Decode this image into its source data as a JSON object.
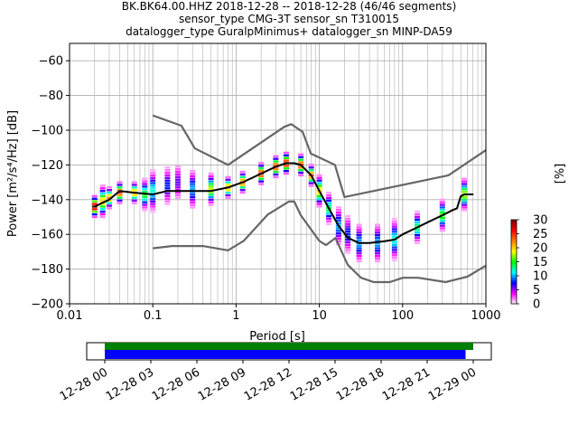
{
  "chart_data": [
    {
      "type": "heatmap",
      "title_lines": [
        "BK.BK64.00.HHZ   2018-12-28 -- 2018-12-28  (46/46 segments)",
        "sensor_type CMG-3T sensor_sn T310015",
        "datalogger_type GuralpMinimus+ datalogger_sn MINP-DA59"
      ],
      "xlabel": "Period [s]",
      "ylabel": "Power [m²/s⁴/Hz] [dB]",
      "xscale": "log",
      "xlim": [
        0.01,
        1000
      ],
      "ylim": [
        -200,
        -50
      ],
      "x_ticks": [
        0.01,
        0.1,
        1,
        10,
        100,
        1000
      ],
      "x_tick_labels": [
        "0.01",
        "0.1",
        "1",
        "10",
        "100",
        "1000"
      ],
      "y_ticks": [
        -200,
        -180,
        -160,
        -140,
        -120,
        -100,
        -80,
        -60
      ],
      "y_tick_labels": [
        "−200",
        "−180",
        "−160",
        "−140",
        "−120",
        "−100",
        "−80",
        "−60"
      ],
      "grid": true,
      "colorbar": {
        "label": "[%]",
        "range": [
          0,
          30
        ],
        "ticks": [
          0,
          5,
          10,
          15,
          20,
          25,
          30
        ],
        "tick_labels": [
          "0",
          "5",
          "10",
          "15",
          "20",
          "25",
          "30"
        ],
        "colormap_stops": [
          "#ffffff",
          "#ff00ff",
          "#0000ff",
          "#00ffff",
          "#00ff00",
          "#ffff00",
          "#ff7f00",
          "#ff0000",
          "#800000"
        ]
      },
      "series": [
        {
          "role": "noise-model-high",
          "color": "#666666",
          "x": [
            0.1,
            0.22,
            0.32,
            0.8,
            3.8,
            4.6,
            6.3,
            7.9,
            15.4,
            20,
            354.8,
            1000
          ],
          "y": [
            -91.5,
            -97.4,
            -110.5,
            -120,
            -98,
            -96.5,
            -101,
            -113.5,
            -120,
            -138.5,
            -126,
            -111.5
          ]
        },
        {
          "role": "noise-model-low",
          "color": "#666666",
          "x": [
            0.1,
            0.17,
            0.4,
            0.8,
            1.24,
            2.4,
            4.3,
            5,
            6,
            10,
            12,
            15.6,
            21.9,
            31.6,
            45,
            70,
            101,
            154,
            328,
            600,
            1000
          ],
          "y": [
            -168,
            -166.7,
            -166.7,
            -169.2,
            -163.7,
            -148.6,
            -141.1,
            -141.1,
            -149,
            -163.8,
            -166.2,
            -162.1,
            -177.5,
            -185,
            -187.5,
            -187.5,
            -185,
            -185,
            -187.5,
            -184.4,
            -178
          ]
        },
        {
          "role": "median-psd",
          "color": "#000000",
          "x": [
            0.02,
            0.03,
            0.04,
            0.06,
            0.1,
            0.15,
            0.2,
            0.3,
            0.5,
            0.8,
            1.2,
            2,
            3,
            4,
            5,
            6,
            8,
            10,
            13,
            17,
            22,
            30,
            40,
            60,
            80,
            100,
            150,
            200,
            300,
            400,
            450,
            500,
            550,
            600,
            700
          ],
          "y": [
            -144,
            -140,
            -135,
            -136,
            -137,
            -135,
            -135,
            -135,
            -135,
            -133,
            -130,
            -125,
            -121,
            -119,
            -119,
            -120,
            -126,
            -135,
            -145,
            -155,
            -162,
            -165,
            -165,
            -164,
            -163,
            -160,
            -156,
            -153,
            -149,
            -146,
            -145,
            -138,
            -137,
            -137,
            -137
          ]
        }
      ],
      "psd_distribution": {
        "description_values": "percent occurrence per period bin",
        "points": [
          {
            "x": 0.02,
            "y": -144,
            "pct": 30
          },
          {
            "x": 0.025,
            "y": -141,
            "pct": 20
          },
          {
            "x": 0.03,
            "y": -139,
            "pct": 22
          },
          {
            "x": 0.04,
            "y": -136,
            "pct": 25
          },
          {
            "x": 0.06,
            "y": -136,
            "pct": 22
          },
          {
            "x": 0.08,
            "y": -137,
            "pct": 15
          },
          {
            "x": 0.1,
            "y": -135,
            "pct": 12
          },
          {
            "x": 0.15,
            "y": -132,
            "pct": 8
          },
          {
            "x": 0.2,
            "y": -130,
            "pct": 6
          },
          {
            "x": 0.3,
            "y": -134,
            "pct": 10
          },
          {
            "x": 0.5,
            "y": -134,
            "pct": 18
          },
          {
            "x": 0.8,
            "y": -133,
            "pct": 22
          },
          {
            "x": 1.2,
            "y": -130,
            "pct": 24
          },
          {
            "x": 2,
            "y": -125,
            "pct": 26
          },
          {
            "x": 3,
            "y": -121,
            "pct": 26
          },
          {
            "x": 4,
            "y": -119,
            "pct": 28
          },
          {
            "x": 6,
            "y": -120,
            "pct": 26
          },
          {
            "x": 8,
            "y": -126,
            "pct": 24
          },
          {
            "x": 10,
            "y": -135,
            "pct": 20
          },
          {
            "x": 13,
            "y": -145,
            "pct": 14
          },
          {
            "x": 17,
            "y": -155,
            "pct": 10
          },
          {
            "x": 22,
            "y": -160,
            "pct": 8
          },
          {
            "x": 30,
            "y": -165,
            "pct": 10
          },
          {
            "x": 50,
            "y": -165,
            "pct": 10
          },
          {
            "x": 80,
            "y": -163,
            "pct": 12
          },
          {
            "x": 150,
            "y": -156,
            "pct": 14
          },
          {
            "x": 300,
            "y": -149,
            "pct": 16
          },
          {
            "x": 550,
            "y": -137,
            "pct": 18
          }
        ]
      }
    },
    {
      "type": "timeline",
      "x_tick_labels": [
        "12-28 00",
        "12-28 03",
        "12-28 06",
        "12-28 09",
        "12-28 12",
        "12-28 15",
        "12-28 18",
        "12-28 21",
        "12-29 00"
      ],
      "bars": [
        {
          "role": "data-coverage",
          "color": "#008000",
          "start_hour": 0,
          "end_hour": 24.5
        },
        {
          "role": "psd-segments",
          "color": "#0000ff",
          "start_hour": 0,
          "end_hour": 23.5
        }
      ]
    }
  ]
}
